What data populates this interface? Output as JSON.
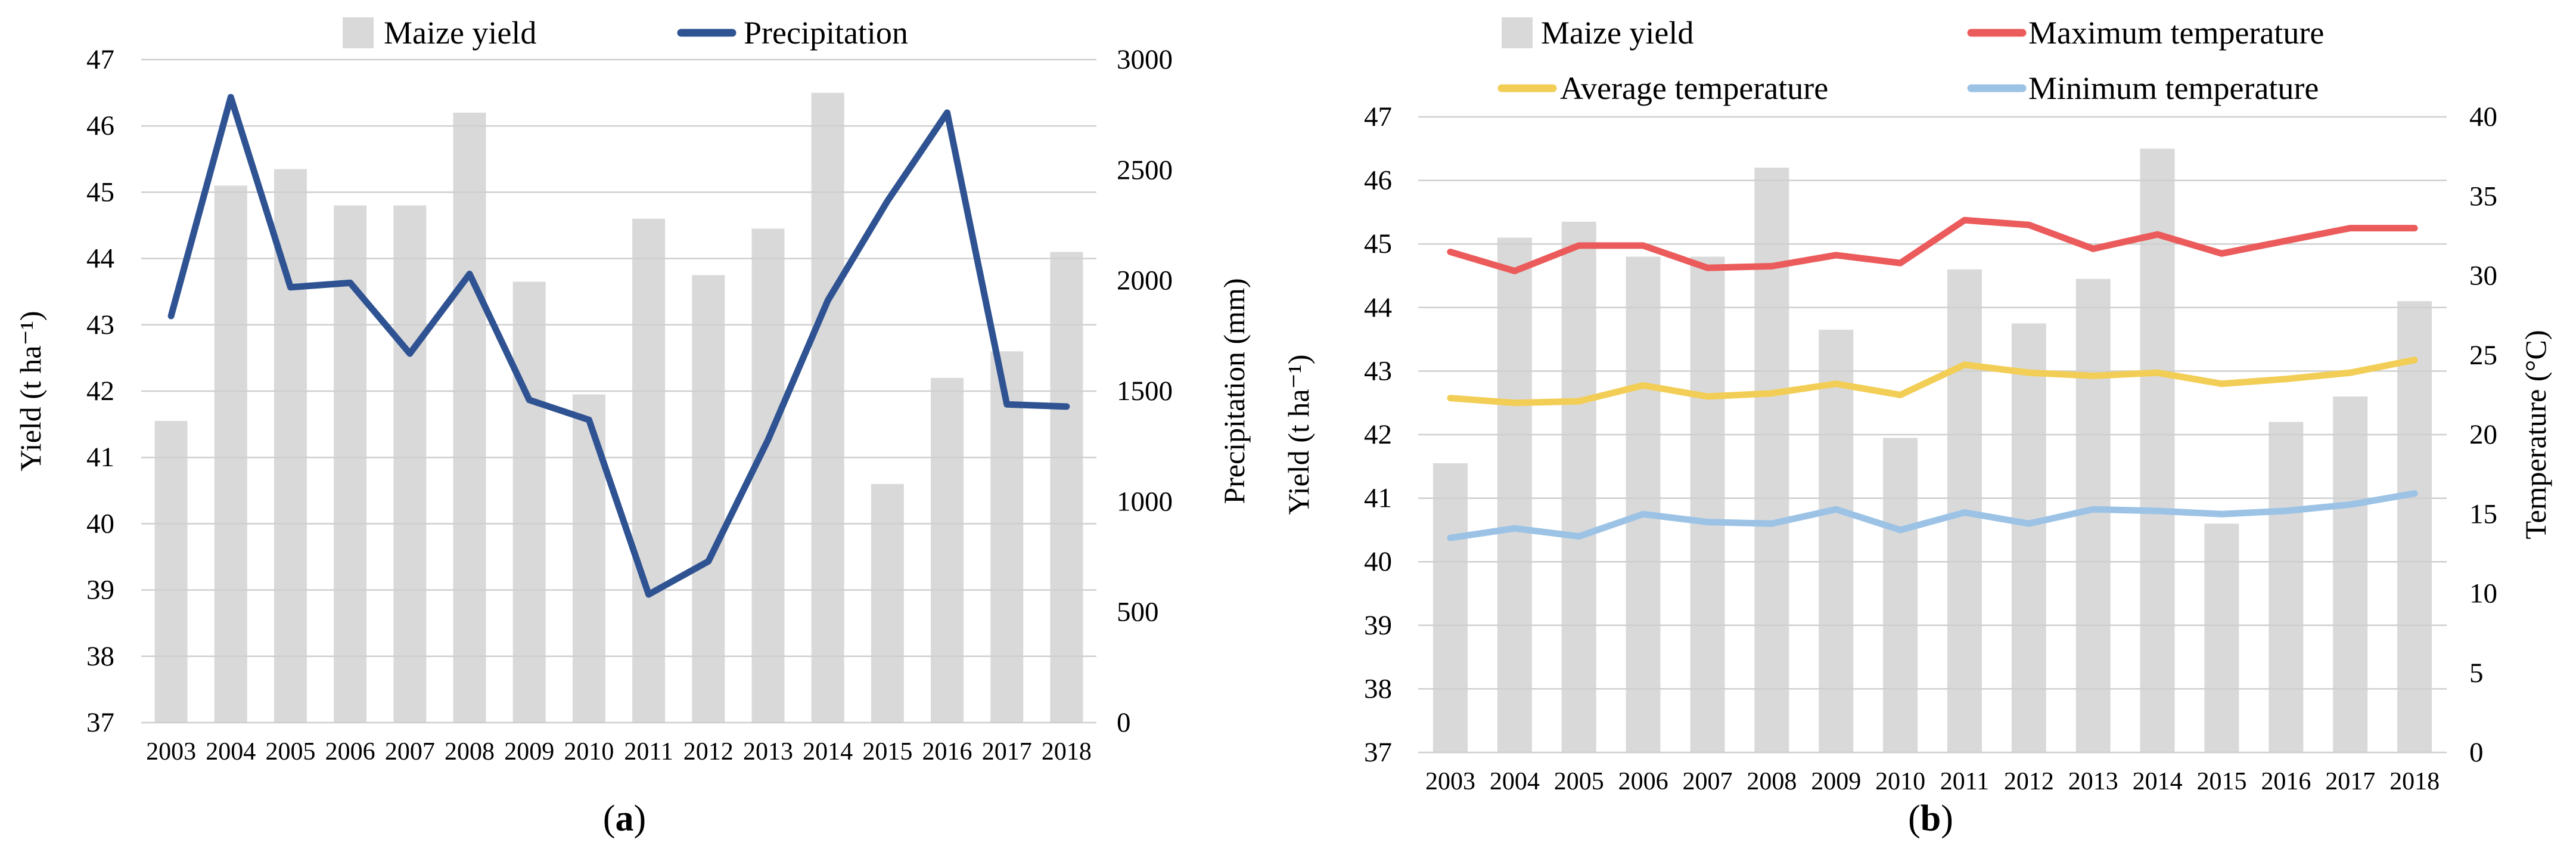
{
  "figure": {
    "captions": {
      "paren_open": "(",
      "a": "a",
      "b": "b",
      "paren_close": ")"
    }
  },
  "colors": {
    "bar": "#d9d9d9",
    "grid": "#cfcfcf",
    "precipitation": "#2f5392",
    "max_temp": "#ec5b5b",
    "avg_temp": "#f2ce56",
    "min_temp": "#9cc3e5",
    "text": "#000000"
  },
  "chart_data": [
    {
      "type": "bar+line",
      "panel": "a",
      "categories": [
        "2003",
        "2004",
        "2005",
        "2006",
        "2007",
        "2008",
        "2009",
        "2010",
        "2011",
        "2012",
        "2013",
        "2014",
        "2015",
        "2016",
        "2017",
        "2018"
      ],
      "series": [
        {
          "name": "Maize yield",
          "type": "bar",
          "axis": "left",
          "marker": "square",
          "color_key": "bar",
          "values": [
            41.55,
            45.1,
            45.35,
            44.8,
            44.8,
            46.2,
            43.65,
            41.95,
            44.6,
            43.75,
            44.45,
            46.5,
            40.6,
            42.2,
            42.6,
            44.1
          ]
        },
        {
          "name": "Precipitation",
          "type": "line",
          "axis": "right",
          "marker": "line",
          "color_key": "precipitation",
          "values": [
            1840,
            2830,
            1970,
            1990,
            1670,
            2030,
            1460,
            1370,
            580,
            730,
            1280,
            1910,
            2360,
            2760,
            1440,
            1430
          ]
        }
      ],
      "left_axis": {
        "label": "Yield  (t ha⁻¹)",
        "min": 37,
        "max": 47,
        "ticks": [
          "37",
          "38",
          "39",
          "40",
          "41",
          "42",
          "43",
          "44",
          "45",
          "46",
          "47"
        ]
      },
      "right_axis": {
        "label": "Precipitation (mm)",
        "min": 0,
        "max": 3000,
        "ticks": [
          "0",
          "500",
          "1000",
          "1500",
          "2000",
          "2500",
          "3000"
        ]
      },
      "grid": true,
      "legend_position": "top"
    },
    {
      "type": "bar+line",
      "panel": "b",
      "categories": [
        "2003",
        "2004",
        "2005",
        "2006",
        "2007",
        "2008",
        "2009",
        "2010",
        "2011",
        "2012",
        "2013",
        "2014",
        "2015",
        "2016",
        "2017",
        "2018"
      ],
      "series": [
        {
          "name": "Maize yield",
          "type": "bar",
          "axis": "left",
          "marker": "square",
          "color_key": "bar",
          "values": [
            41.55,
            45.1,
            45.35,
            44.8,
            44.8,
            46.2,
            43.65,
            41.95,
            44.6,
            43.75,
            44.45,
            46.5,
            40.6,
            42.2,
            42.6,
            44.1
          ]
        },
        {
          "name": "Maximum temperature",
          "type": "line",
          "axis": "right",
          "marker": "line",
          "color_key": "max_temp",
          "values": [
            31.5,
            30.3,
            31.9,
            31.9,
            30.5,
            30.6,
            31.3,
            30.8,
            33.5,
            33.2,
            31.7,
            32.6,
            31.4,
            32.2,
            33.0,
            33.0
          ]
        },
        {
          "name": "Average temperature",
          "type": "line",
          "axis": "right",
          "marker": "line",
          "color_key": "avg_temp",
          "values": [
            22.3,
            22.0,
            22.1,
            23.1,
            22.4,
            22.6,
            23.2,
            22.5,
            24.4,
            23.9,
            23.7,
            23.9,
            23.2,
            23.5,
            23.9,
            24.7
          ]
        },
        {
          "name": "Minimum temperature",
          "type": "line",
          "axis": "right",
          "marker": "line",
          "color_key": "min_temp",
          "values": [
            13.5,
            14.1,
            13.6,
            15.0,
            14.5,
            14.4,
            15.3,
            14.0,
            15.1,
            14.4,
            15.3,
            15.2,
            15.0,
            15.2,
            15.6,
            16.3
          ]
        }
      ],
      "left_axis": {
        "label": "Yield (t ha⁻¹)",
        "min": 37,
        "max": 47,
        "ticks": [
          "37",
          "38",
          "39",
          "40",
          "41",
          "42",
          "43",
          "44",
          "45",
          "46",
          "47"
        ]
      },
      "right_axis": {
        "label": "Temperature (°C)",
        "min": 0,
        "max": 40,
        "ticks": [
          "0",
          "5",
          "10",
          "15",
          "20",
          "25",
          "30",
          "35",
          "40"
        ]
      },
      "grid": true,
      "legend_position": "top"
    }
  ]
}
